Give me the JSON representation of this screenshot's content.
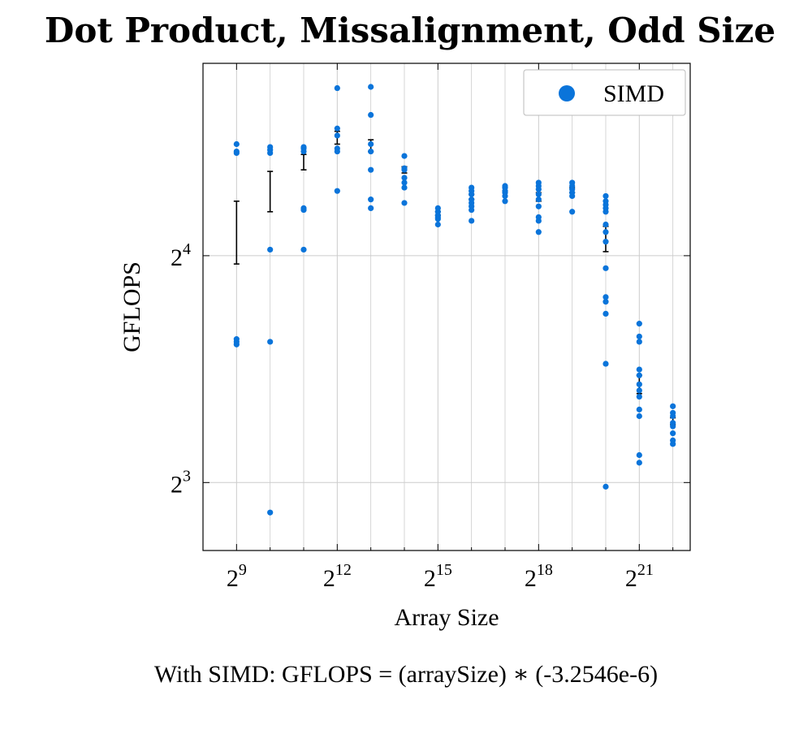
{
  "chart_data": {
    "type": "scatter",
    "title": "Dot Product, Missalignment, Odd Size",
    "xlabel": "Array Size",
    "ylabel": "GFLOPS",
    "x_scale": "log2",
    "y_scale": "log2",
    "xlim": [
      256,
      6000000
    ],
    "ylim": [
      6.5,
      28.8
    ],
    "x_ticks": [
      {
        "base": "2",
        "exp": "9",
        "value": 512
      },
      {
        "base": "2",
        "exp": "12",
        "value": 4096
      },
      {
        "base": "2",
        "exp": "15",
        "value": 32768
      },
      {
        "base": "2",
        "exp": "18",
        "value": 262144
      },
      {
        "base": "2",
        "exp": "21",
        "value": 2097152
      }
    ],
    "x_minor_ticks": [
      1024,
      2048,
      8192,
      16384,
      65536,
      131072,
      524288,
      1048576,
      4194304
    ],
    "y_ticks": [
      {
        "base": "2",
        "exp": "3",
        "value": 8
      },
      {
        "base": "2",
        "exp": "4",
        "value": 16
      }
    ],
    "grid": true,
    "legend": {
      "position": "top-right",
      "entries": [
        "SIMD"
      ]
    },
    "colors": {
      "series": "#0a74da",
      "errorbar": "#000000",
      "grid": "#cccccc"
    },
    "series": [
      {
        "name": "SIMD",
        "points": [
          {
            "x": 512,
            "y": [
              22.5,
              22.0,
              21.9,
              12.4,
              12.3,
              12.2
            ]
          },
          {
            "x": 1024,
            "y": [
              22.3,
              22.1,
              21.9,
              16.3,
              12.3,
              7.3
            ]
          },
          {
            "x": 2048,
            "y": [
              22.3,
              22.2,
              22.0,
              18.5,
              18.4,
              16.3
            ]
          },
          {
            "x": 4096,
            "y": [
              26.7,
              23.6,
              23.1,
              22.2,
              22.0,
              19.5
            ]
          },
          {
            "x": 8192,
            "y": [
              26.8,
              24.6,
              22.5,
              22.0,
              20.8,
              19.0,
              18.5
            ]
          },
          {
            "x": 16384,
            "y": [
              21.7,
              20.9,
              20.8,
              20.3,
              20.0,
              19.7,
              18.8
            ]
          },
          {
            "x": 32768,
            "y": [
              18.5,
              18.3,
              18.1,
              18.0,
              17.9,
              17.6
            ]
          },
          {
            "x": 65536,
            "y": [
              19.7,
              19.5,
              19.3,
              19.0,
              18.8,
              18.6,
              18.4,
              17.8
            ]
          },
          {
            "x": 131072,
            "y": [
              19.8,
              19.7,
              19.5,
              19.4,
              19.2,
              18.9
            ]
          },
          {
            "x": 262144,
            "y": [
              20.0,
              19.8,
              19.6,
              19.3,
              19.0,
              18.6,
              18.0,
              17.8,
              17.2
            ]
          },
          {
            "x": 524288,
            "y": [
              20.0,
              19.8,
              19.6,
              19.4,
              19.2,
              18.3
            ]
          },
          {
            "x": 1048576,
            "y": [
              19.2,
              18.9,
              18.7,
              18.5,
              18.3,
              17.6,
              17.2,
              16.7,
              15.4,
              14.1,
              13.9,
              13.4,
              11.5,
              7.9
            ]
          },
          {
            "x": 2097152,
            "y": [
              13.0,
              12.5,
              12.3,
              11.3,
              11.1,
              10.8,
              10.6,
              10.4,
              10.0,
              9.8,
              8.7,
              8.5
            ]
          },
          {
            "x": 4194304,
            "y": [
              10.1,
              9.9,
              9.8,
              9.6,
              9.5,
              9.3,
              9.1,
              9.0
            ]
          }
        ],
        "error_bars": [
          {
            "x": 512,
            "low": 15.6,
            "high": 18.9
          },
          {
            "x": 1024,
            "low": 18.3,
            "high": 20.7
          },
          {
            "x": 2048,
            "low": 20.8,
            "high": 21.8
          },
          {
            "x": 4096,
            "low": 22.5,
            "high": 23.4
          },
          {
            "x": 8192,
            "low": 22.0,
            "high": 22.8
          },
          {
            "x": 16384,
            "low": 20.6,
            "high": 21.0
          },
          {
            "x": 32768,
            "low": 18.1,
            "high": 18.3
          },
          {
            "x": 65536,
            "low": 19.0,
            "high": 19.3
          },
          {
            "x": 131072,
            "low": 19.5,
            "high": 19.7
          },
          {
            "x": 262144,
            "low": 18.9,
            "high": 19.4
          },
          {
            "x": 524288,
            "low": 19.4,
            "high": 19.7
          },
          {
            "x": 1048576,
            "low": 16.2,
            "high": 17.5
          },
          {
            "x": 2097152,
            "low": 10.5,
            "high": 11.1
          },
          {
            "x": 4194304,
            "low": 9.55,
            "high": 9.75
          }
        ]
      }
    ],
    "caption": "With SIMD:  GFLOPS = (arraySize) ∗ (-3.2546e-6)"
  }
}
